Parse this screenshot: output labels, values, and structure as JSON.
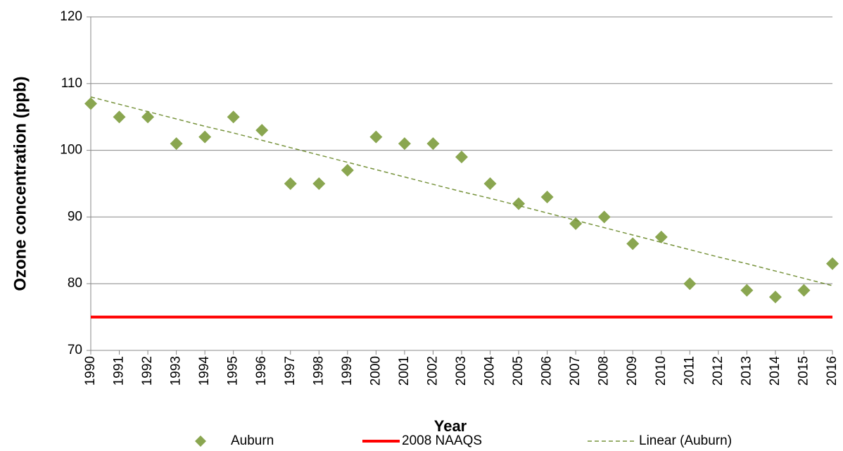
{
  "chart_data": {
    "type": "line",
    "x_label": "Year",
    "y_label": "Ozone concentration (ppb)",
    "categories": [
      "1990",
      "1991",
      "1992",
      "1993",
      "1994",
      "1995",
      "1996",
      "1997",
      "1998",
      "1999",
      "2000",
      "2001",
      "2002",
      "2003",
      "2004",
      "2005",
      "2006",
      "2007",
      "2008",
      "2009",
      "2010",
      "2011",
      "2012",
      "2013",
      "2014",
      "2015",
      "2016"
    ],
    "series": [
      {
        "name": "Auburn",
        "color": "#8aa650",
        "style": "markers",
        "values": [
          107,
          105,
          105,
          101,
          102,
          105,
          103,
          95,
          95,
          97,
          102,
          101,
          101,
          99,
          95,
          92,
          93,
          89,
          90,
          86,
          87,
          80,
          null,
          79,
          78,
          79,
          83
        ]
      },
      {
        "name": "2008 NAAQS",
        "color": "#ff0000",
        "style": "line",
        "values": [
          75,
          75,
          75,
          75,
          75,
          75,
          75,
          75,
          75,
          75,
          75,
          75,
          75,
          75,
          75,
          75,
          75,
          75,
          75,
          75,
          75,
          75,
          75,
          75,
          75,
          75,
          75
        ]
      },
      {
        "name": "Linear (Auburn)",
        "color": "#77933c",
        "style": "dashed",
        "values": [
          108,
          106.9,
          105.8,
          104.7,
          103.6,
          102.6,
          101.5,
          100.4,
          99.3,
          98.2,
          97.1,
          96.0,
          94.9,
          93.8,
          92.8,
          91.7,
          90.6,
          89.5,
          88.4,
          87.3,
          86.2,
          85.1,
          84.0,
          83.0,
          81.9,
          80.8,
          79.7
        ]
      }
    ],
    "ylim": [
      70,
      120
    ],
    "yticks": [
      70,
      80,
      90,
      100,
      110,
      120
    ],
    "grid": true,
    "legend": "bottom"
  }
}
